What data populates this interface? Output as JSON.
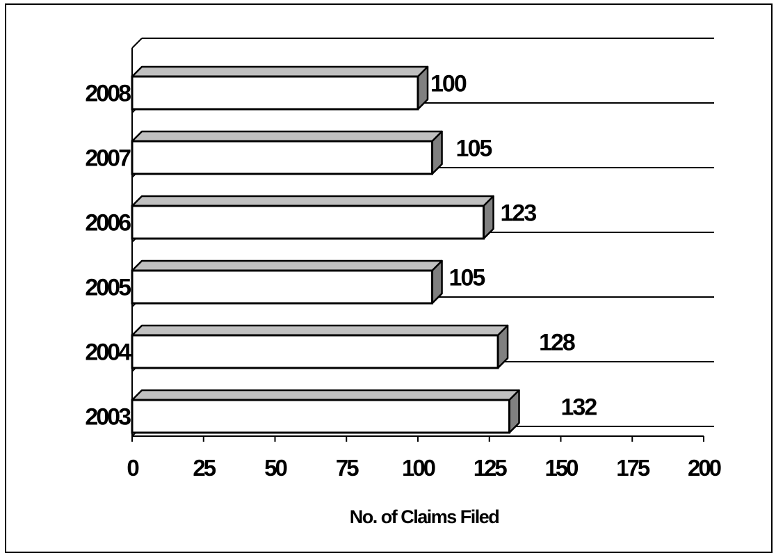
{
  "chart_data": {
    "type": "bar",
    "orientation": "horizontal",
    "three_d": true,
    "categories": [
      "2003",
      "2004",
      "2005",
      "2006",
      "2007",
      "2008"
    ],
    "values": [
      132,
      128,
      105,
      123,
      105,
      100
    ],
    "title": "",
    "xlabel": "No. of Claims Filed",
    "ylabel": "",
    "xlim": [
      0,
      200
    ],
    "xticks": [
      "0",
      "25",
      "50",
      "75",
      "100",
      "125",
      "150",
      "175",
      "200"
    ],
    "data_labels": [
      "132",
      "128",
      "105",
      "123",
      "105",
      "100"
    ],
    "grid": true,
    "legend": "none",
    "colors": {
      "bar_face": "#ffffff",
      "bar_top": "#c0c0c0",
      "bar_side": "#808080",
      "stroke": "#000000"
    }
  }
}
